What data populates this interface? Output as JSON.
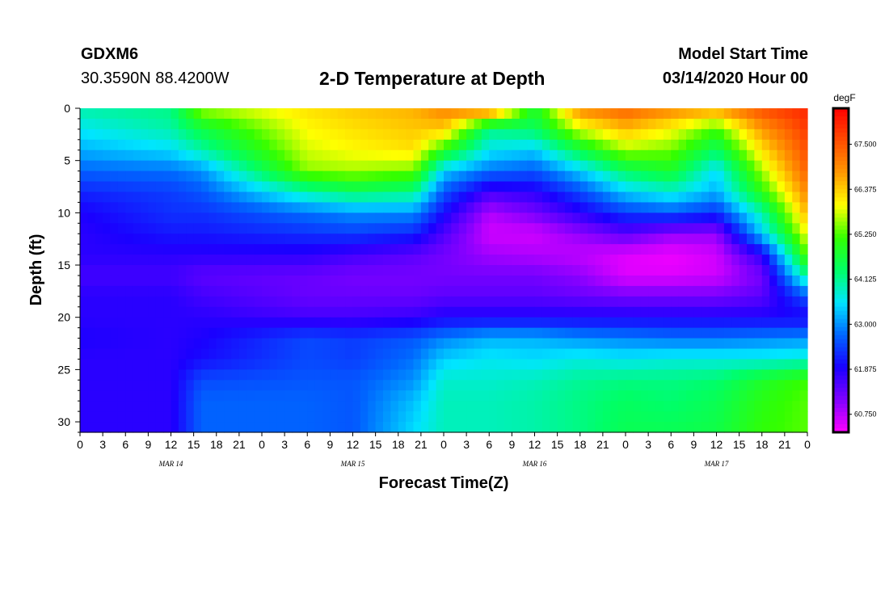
{
  "header": {
    "station": "GDXM6",
    "coords": "30.3590N 88.4200W",
    "title": "2-D Temperature at Depth",
    "start_label": "Model Start Time",
    "start_value": "03/14/2020 Hour 00"
  },
  "chart_data": {
    "type": "heatmap",
    "title": "2-D Temperature at Depth",
    "xlabel": "Forecast Time(Z)",
    "ylabel": "Depth (ft)",
    "x_tick_labels": [
      "0",
      "3",
      "6",
      "9",
      "12",
      "15",
      "18",
      "21",
      "0",
      "3",
      "6",
      "9",
      "12",
      "15",
      "18",
      "21",
      "0",
      "3",
      "6",
      "9",
      "12",
      "15",
      "18",
      "21",
      "0",
      "3",
      "6",
      "9",
      "12",
      "15",
      "18",
      "21",
      "0"
    ],
    "x_day_labels": [
      {
        "label": "MAR 14",
        "hour": 12
      },
      {
        "label": "MAR 15",
        "hour": 36
      },
      {
        "label": "MAR 16",
        "hour": 60
      },
      {
        "label": "MAR 17",
        "hour": 84
      }
    ],
    "xlim": [
      0,
      96
    ],
    "ylim": [
      31,
      0
    ],
    "y_ticks": [
      0,
      5,
      10,
      15,
      20,
      25,
      30
    ],
    "colorbar": {
      "unit": "degF",
      "ticks": [
        "67.500",
        "66.375",
        "65.250",
        "64.125",
        "63.000",
        "61.875",
        "60.750"
      ],
      "range": [
        60.3,
        68.4
      ],
      "colors": [
        "#ff00ff",
        "#8000ff",
        "#1a00ff",
        "#0066ff",
        "#00e5ff",
        "#00ff66",
        "#33ff00",
        "#ffff00",
        "#ff9900",
        "#ff4d00",
        "#ff0000"
      ]
    },
    "depths": [
      0,
      2,
      4,
      6,
      8,
      10,
      12,
      14,
      16,
      18,
      20,
      22,
      24,
      26,
      28,
      31
    ],
    "hours": [
      0,
      12,
      16,
      30,
      36,
      44,
      48,
      54,
      60,
      66,
      72,
      78,
      84,
      90,
      96
    ],
    "temperature": [
      [
        64.0,
        64.2,
        65.6,
        66.2,
        66.4,
        66.6,
        67.0,
        67.3,
        64.8,
        67.0,
        67.4,
        67.0,
        66.8,
        67.6,
        68.0
      ],
      [
        63.6,
        64.0,
        64.6,
        66.0,
        66.2,
        66.4,
        66.4,
        64.2,
        64.4,
        65.8,
        66.5,
        66.0,
        65.2,
        66.8,
        67.8
      ],
      [
        63.2,
        63.5,
        64.0,
        65.8,
        66.0,
        66.2,
        65.0,
        63.6,
        63.4,
        64.6,
        65.6,
        65.4,
        64.4,
        66.2,
        67.6
      ],
      [
        62.7,
        62.8,
        63.0,
        65.5,
        65.6,
        65.4,
        63.4,
        62.8,
        62.6,
        63.4,
        64.4,
        64.8,
        63.5,
        65.6,
        67.4
      ],
      [
        62.2,
        62.4,
        62.6,
        64.0,
        64.4,
        64.2,
        62.6,
        61.6,
        61.8,
        62.5,
        63.4,
        63.8,
        63.2,
        65.0,
        67.0
      ],
      [
        61.9,
        62.3,
        62.3,
        62.8,
        63.0,
        63.0,
        62.0,
        60.8,
        61.2,
        61.8,
        62.4,
        62.6,
        62.3,
        64.0,
        66.6
      ],
      [
        61.8,
        62.1,
        62.1,
        62.3,
        62.4,
        62.2,
        61.5,
        60.6,
        60.6,
        61.0,
        61.4,
        61.0,
        61.0,
        63.4,
        66.0
      ],
      [
        61.8,
        61.8,
        61.8,
        61.8,
        61.6,
        61.4,
        61.2,
        60.9,
        60.8,
        60.7,
        60.5,
        60.4,
        60.6,
        61.8,
        65.4
      ],
      [
        61.6,
        61.6,
        61.4,
        61.3,
        61.2,
        61.2,
        61.2,
        61.2,
        61.2,
        61.0,
        60.5,
        60.5,
        60.6,
        61.2,
        64.2
      ],
      [
        61.8,
        61.8,
        61.6,
        61.3,
        61.3,
        61.3,
        61.4,
        61.4,
        61.4,
        61.3,
        61.2,
        61.2,
        61.2,
        61.4,
        62.6
      ],
      [
        61.8,
        61.8,
        61.8,
        61.6,
        61.6,
        61.7,
        61.9,
        61.9,
        61.9,
        61.9,
        61.9,
        61.9,
        61.9,
        61.9,
        61.9
      ],
      [
        61.9,
        61.8,
        61.9,
        62.5,
        62.4,
        62.6,
        62.9,
        63.2,
        63.2,
        63.0,
        62.9,
        62.8,
        62.8,
        62.9,
        63.0
      ],
      [
        61.8,
        61.8,
        62.0,
        62.5,
        62.4,
        62.8,
        63.4,
        63.6,
        63.5,
        63.7,
        63.6,
        63.7,
        63.7,
        63.7,
        63.8
      ],
      [
        61.8,
        61.8,
        62.5,
        62.6,
        62.6,
        63.0,
        63.8,
        63.8,
        63.9,
        64.1,
        64.2,
        64.2,
        64.3,
        64.8,
        65.2
      ],
      [
        61.8,
        61.8,
        62.7,
        62.7,
        62.6,
        63.3,
        63.9,
        63.9,
        64.0,
        64.2,
        64.4,
        64.3,
        64.5,
        65.0,
        65.3
      ],
      [
        61.8,
        61.8,
        62.7,
        62.7,
        62.6,
        63.5,
        63.9,
        63.9,
        64.0,
        64.2,
        64.5,
        64.5,
        64.6,
        65.1,
        65.3
      ]
    ]
  }
}
